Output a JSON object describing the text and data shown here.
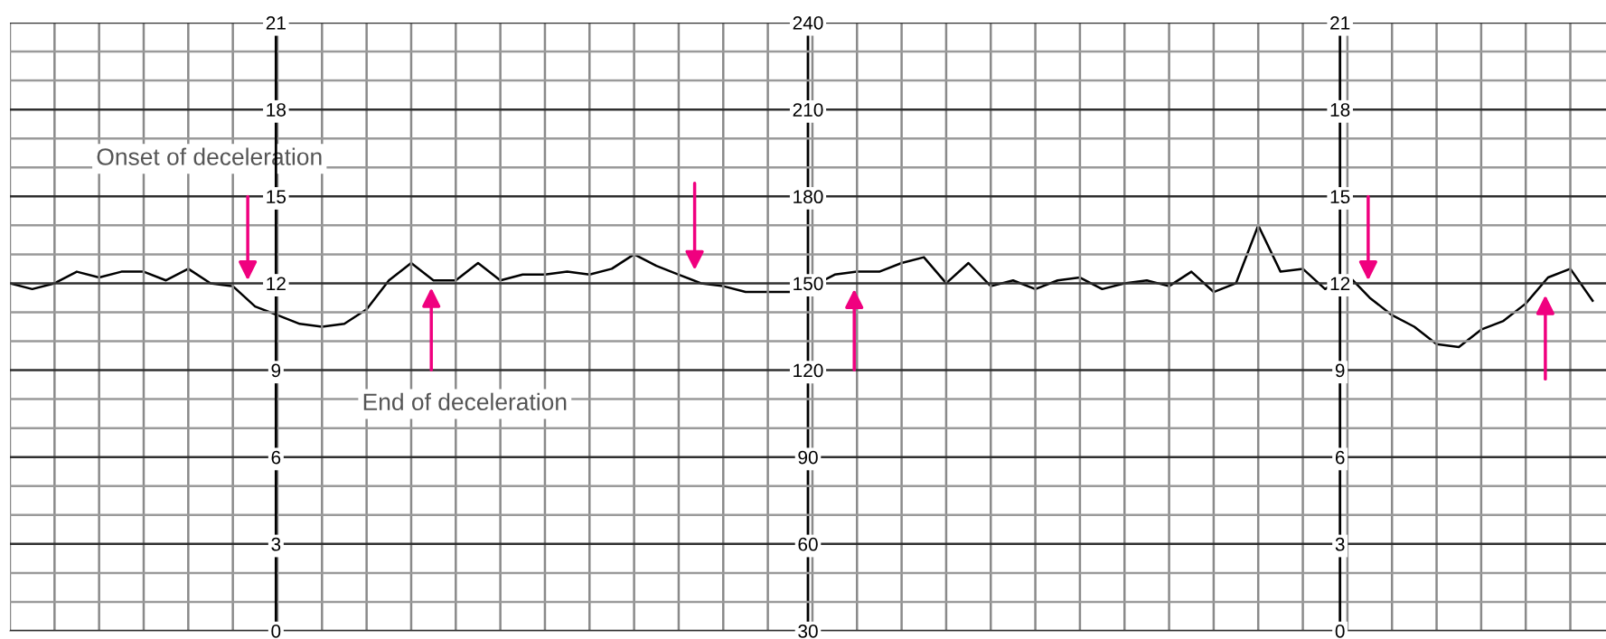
{
  "chart_data": {
    "type": "line",
    "categories": [
      null,
      null,
      null,
      null,
      null,
      null,
      null,
      null,
      null,
      null,
      null,
      null,
      null,
      null,
      null,
      null,
      null,
      null,
      null,
      null,
      null,
      null,
      null,
      null,
      null,
      null,
      null,
      null,
      null,
      null,
      null,
      null,
      null,
      null,
      null,
      null,
      null,
      null,
      null,
      null,
      null,
      null,
      null,
      null,
      null,
      null,
      null,
      null,
      null,
      null,
      null,
      null,
      null,
      null,
      null,
      null,
      null,
      null,
      null,
      null,
      null,
      null,
      null,
      null,
      null,
      null,
      null,
      null,
      null,
      null,
      null,
      null
    ],
    "ylim": [
      30,
      240
    ],
    "yticks": [
      30,
      {
        "value": 40,
        "label": null
      },
      {
        "value": 50,
        "label": null
      },
      60,
      {
        "value": 70,
        "label": null
      },
      {
        "value": 80,
        "label": null
      },
      90,
      {
        "value": 100,
        "label": null
      },
      {
        "value": 110,
        "label": null
      },
      120,
      {
        "value": 130,
        "label": null
      },
      {
        "value": 140,
        "label": null
      },
      150,
      {
        "value": 160,
        "label": null
      },
      {
        "value": 170,
        "label": null
      },
      180,
      {
        "value": 190,
        "label": null
      },
      {
        "value": 200,
        "label": null
      },
      210,
      {
        "value": 220,
        "label": null
      },
      {
        "value": 230,
        "label": null
      },
      240
    ],
    "y2lim": [
      0,
      21
    ],
    "y2ticks": [
      0,
      3,
      6,
      9,
      12,
      15,
      18,
      21
    ],
    "y3lim": [
      0,
      21
    ],
    "y3ticks": [
      0,
      3,
      6,
      9,
      12,
      15,
      18,
      21
    ],
    "tick_labels": "y",
    "grid": true,
    "series": [
      {
        "color": "#000000",
        "values": [
          150,
          148,
          150,
          154,
          152,
          154,
          154,
          151,
          155,
          150,
          149,
          142,
          139,
          136,
          135,
          136,
          141,
          151,
          157,
          151,
          151,
          157,
          151,
          153,
          153,
          154,
          153,
          155,
          160,
          156,
          153,
          150,
          149,
          147,
          147,
          147,
          149,
          153,
          154,
          154,
          157,
          159,
          150,
          157,
          149,
          151,
          148,
          151,
          152,
          148,
          150,
          151,
          149,
          154,
          147,
          150,
          170,
          154,
          155,
          148,
          153,
          145,
          139,
          135,
          129,
          128,
          134,
          137,
          143,
          152,
          155,
          144
        ]
      }
    ],
    "annotations": [
      "Onset of deceleration",
      "End of deceleration"
    ]
  }
}
